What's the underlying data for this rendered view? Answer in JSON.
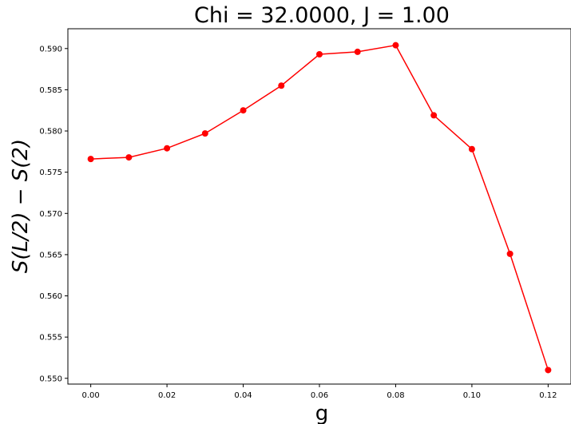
{
  "chart_data": {
    "type": "line",
    "title": "Chi = 32.0000, J = 1.00",
    "xlabel": "g",
    "ylabel": "S(L/2) − S(2)",
    "x": [
      0.0,
      0.01,
      0.02,
      0.03,
      0.04,
      0.05,
      0.06,
      0.07,
      0.08,
      0.09,
      0.1,
      0.11,
      0.12
    ],
    "series": [
      {
        "values": [
          0.5766,
          0.5768,
          0.5779,
          0.5797,
          0.5825,
          0.5855,
          0.5893,
          0.5896,
          0.5904,
          0.5819,
          0.5778,
          0.5651,
          0.551
        ]
      }
    ],
    "xticks": [
      "0.00",
      "0.02",
      "0.04",
      "0.06",
      "0.08",
      "0.10",
      "0.12"
    ],
    "yticks": [
      "0.550",
      "0.555",
      "0.560",
      "0.565",
      "0.570",
      "0.575",
      "0.580",
      "0.585",
      "0.590"
    ],
    "xlim": [
      -0.006,
      0.126
    ],
    "ylim": [
      0.5493,
      0.5924
    ],
    "color": "#ff0000",
    "marker": "circle",
    "grid": false
  }
}
